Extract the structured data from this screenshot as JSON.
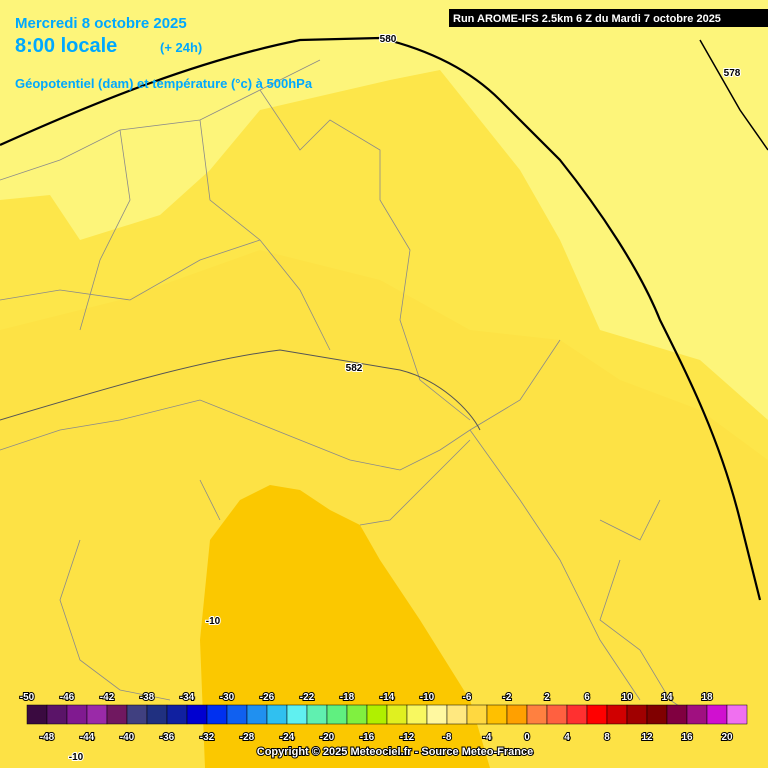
{
  "header": {
    "date": "Mercredi 8 octobre 2025",
    "time": "8:00 locale",
    "lead": "(+ 24h)",
    "field": "Géopotentiel (dam) et température (°c) à 500hPa",
    "run": "Run AROME-IFS 2.5km 6 Z du Mardi 7 octobre 2025"
  },
  "contour_labels": [
    "580",
    "578",
    "582",
    "-10",
    "-10"
  ],
  "colorbar": {
    "colors": [
      "#3a0a40",
      "#5a1468",
      "#801a90",
      "#9a2aa8",
      "#701860",
      "#404080",
      "#203080",
      "#1020a0",
      "#0000d0",
      "#0030f0",
      "#1060f0",
      "#2090f0",
      "#30c0f0",
      "#60f0f0",
      "#60f0b0",
      "#60f080",
      "#80f040",
      "#b0f000",
      "#e0f020",
      "#f8f860",
      "#fff8a0",
      "#ffe880",
      "#ffd840",
      "#ffc000",
      "#ffa000",
      "#ff8040",
      "#ff6040",
      "#ff3030",
      "#ff0000",
      "#d00000",
      "#a00000",
      "#800000",
      "#800040",
      "#a01080",
      "#d010d0",
      "#f070f0"
    ],
    "labels_top": [
      -50,
      -46,
      -42,
      -38,
      -34,
      -30,
      -26,
      -22,
      -18,
      -14,
      -10,
      -6,
      -2,
      2,
      6,
      10,
      14,
      18
    ],
    "labels_bottom": [
      -48,
      -44,
      -40,
      -36,
      -32,
      -28,
      -24,
      -20,
      -16,
      -12,
      -8,
      -4,
      0,
      4,
      8,
      12,
      16,
      20
    ]
  },
  "footer": "Copyright © 2025 Meteociel.fr - Source Meteo-France"
}
